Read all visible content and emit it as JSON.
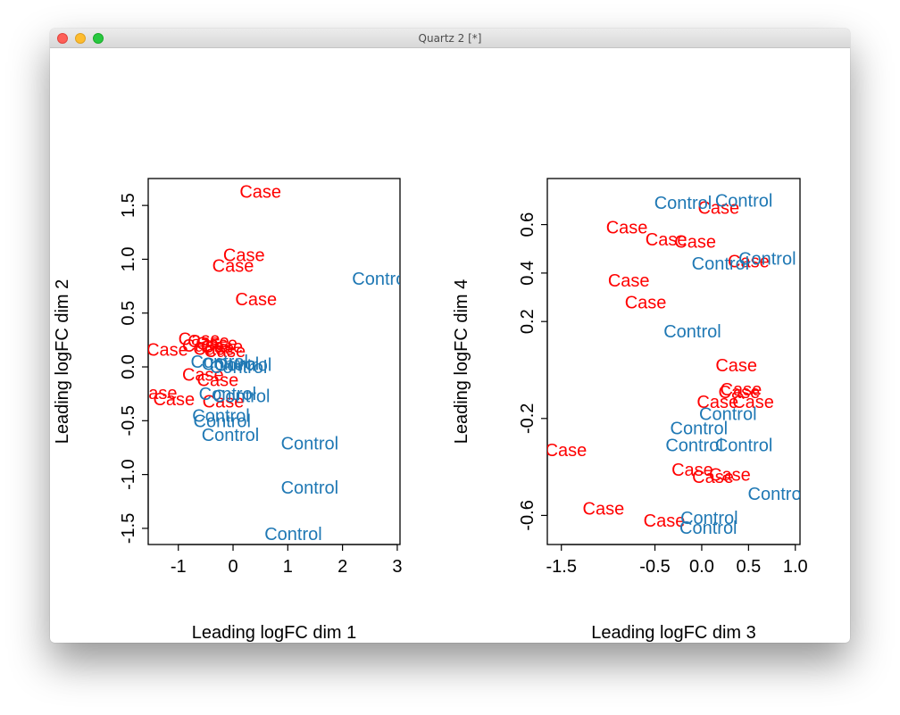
{
  "window": {
    "title": "Quartz 2 [*]",
    "controls": {
      "close": "close-button",
      "minimize": "minimize-button",
      "zoom": "zoom-button"
    }
  },
  "colors": {
    "case": "#ff0000",
    "control": "#1f78b4",
    "axis": "#000000"
  },
  "chart_data": [
    {
      "type": "scatter",
      "marker": "text-label",
      "xlabel": "Leading logFC dim 1",
      "ylabel": "Leading logFC dim 2",
      "xlim": [
        -1.55,
        3.05
      ],
      "ylim": [
        -1.65,
        1.75
      ],
      "xticks": [
        -1,
        0,
        1,
        2,
        3
      ],
      "yticks": [
        -1.5,
        -1.0,
        -0.5,
        0.0,
        0.5,
        1.0,
        1.5
      ],
      "xtick_labels": [
        "-1",
        "0",
        "1",
        "2",
        "3"
      ],
      "ytick_labels": [
        "-1.5",
        "-1.0",
        "-0.5",
        "0.0",
        "0.5",
        "1.0",
        "1.5"
      ],
      "series": [
        {
          "name": "Case",
          "color": "#ff0000",
          "points": [
            {
              "x": 0.5,
              "y": 1.63
            },
            {
              "x": 0.2,
              "y": 1.04
            },
            {
              "x": 0.0,
              "y": 0.94
            },
            {
              "x": 0.42,
              "y": 0.63
            },
            {
              "x": -0.62,
              "y": 0.26
            },
            {
              "x": -0.45,
              "y": 0.24
            },
            {
              "x": -0.3,
              "y": 0.22
            },
            {
              "x": -0.55,
              "y": 0.2
            },
            {
              "x": -0.2,
              "y": 0.19
            },
            {
              "x": -0.35,
              "y": 0.17
            },
            {
              "x": -0.15,
              "y": 0.15
            },
            {
              "x": -1.2,
              "y": 0.16
            },
            {
              "x": -0.55,
              "y": -0.07
            },
            {
              "x": -0.28,
              "y": -0.12
            },
            {
              "x": -1.4,
              "y": -0.24
            },
            {
              "x": -1.08,
              "y": -0.3
            },
            {
              "x": -0.18,
              "y": -0.32
            }
          ]
        },
        {
          "name": "Control",
          "color": "#1f78b4",
          "points": [
            {
              "x": 2.7,
              "y": 0.82
            },
            {
              "x": -0.25,
              "y": 0.05
            },
            {
              "x": -0.05,
              "y": 0.03
            },
            {
              "x": 0.18,
              "y": 0.02
            },
            {
              "x": 0.1,
              "y": 0.0
            },
            {
              "x": -0.1,
              "y": -0.25
            },
            {
              "x": 0.15,
              "y": -0.27
            },
            {
              "x": -0.22,
              "y": -0.45
            },
            {
              "x": -0.2,
              "y": -0.5
            },
            {
              "x": -0.05,
              "y": -0.63
            },
            {
              "x": 1.4,
              "y": -0.71
            },
            {
              "x": 1.4,
              "y": -1.12
            },
            {
              "x": 1.1,
              "y": -1.55
            }
          ]
        }
      ]
    },
    {
      "type": "scatter",
      "marker": "text-label",
      "xlabel": "Leading logFC dim 3",
      "ylabel": "Leading logFC dim 4",
      "xlim": [
        -1.65,
        1.05
      ],
      "ylim": [
        -0.72,
        0.79
      ],
      "xticks": [
        -1.5,
        -0.5,
        0.0,
        0.5,
        1.0
      ],
      "yticks": [
        -0.6,
        -0.2,
        0.2,
        0.4,
        0.6
      ],
      "xtick_labels": [
        "-1.5",
        "-0.5",
        "0.0",
        "0.5",
        "1.0"
      ],
      "ytick_labels": [
        "-0.6",
        "-0.2",
        "0.2",
        "0.4",
        "0.6"
      ],
      "series": [
        {
          "name": "Case",
          "color": "#ff0000",
          "points": [
            {
              "x": 0.18,
              "y": 0.67
            },
            {
              "x": -0.8,
              "y": 0.59
            },
            {
              "x": -0.38,
              "y": 0.54
            },
            {
              "x": -0.07,
              "y": 0.53
            },
            {
              "x": 0.5,
              "y": 0.45
            },
            {
              "x": -0.78,
              "y": 0.37
            },
            {
              "x": -0.6,
              "y": 0.28
            },
            {
              "x": 0.37,
              "y": 0.02
            },
            {
              "x": 0.42,
              "y": -0.08
            },
            {
              "x": 0.4,
              "y": -0.09
            },
            {
              "x": 0.17,
              "y": -0.13
            },
            {
              "x": 0.55,
              "y": -0.13
            },
            {
              "x": -1.45,
              "y": -0.33
            },
            {
              "x": -0.1,
              "y": -0.41
            },
            {
              "x": 0.12,
              "y": -0.44
            },
            {
              "x": 0.3,
              "y": -0.43
            },
            {
              "x": -1.05,
              "y": -0.57
            },
            {
              "x": -0.4,
              "y": -0.62
            }
          ]
        },
        {
          "name": "Control",
          "color": "#1f78b4",
          "points": [
            {
              "x": -0.2,
              "y": 0.69
            },
            {
              "x": 0.45,
              "y": 0.7
            },
            {
              "x": 0.7,
              "y": 0.46
            },
            {
              "x": 0.2,
              "y": 0.44
            },
            {
              "x": -0.1,
              "y": 0.16
            },
            {
              "x": 0.28,
              "y": -0.18
            },
            {
              "x": -0.03,
              "y": -0.24
            },
            {
              "x": 0.45,
              "y": -0.31
            },
            {
              "x": -0.08,
              "y": -0.31
            },
            {
              "x": 0.8,
              "y": -0.51
            },
            {
              "x": 0.08,
              "y": -0.61
            },
            {
              "x": 0.07,
              "y": -0.65
            }
          ]
        }
      ]
    }
  ]
}
